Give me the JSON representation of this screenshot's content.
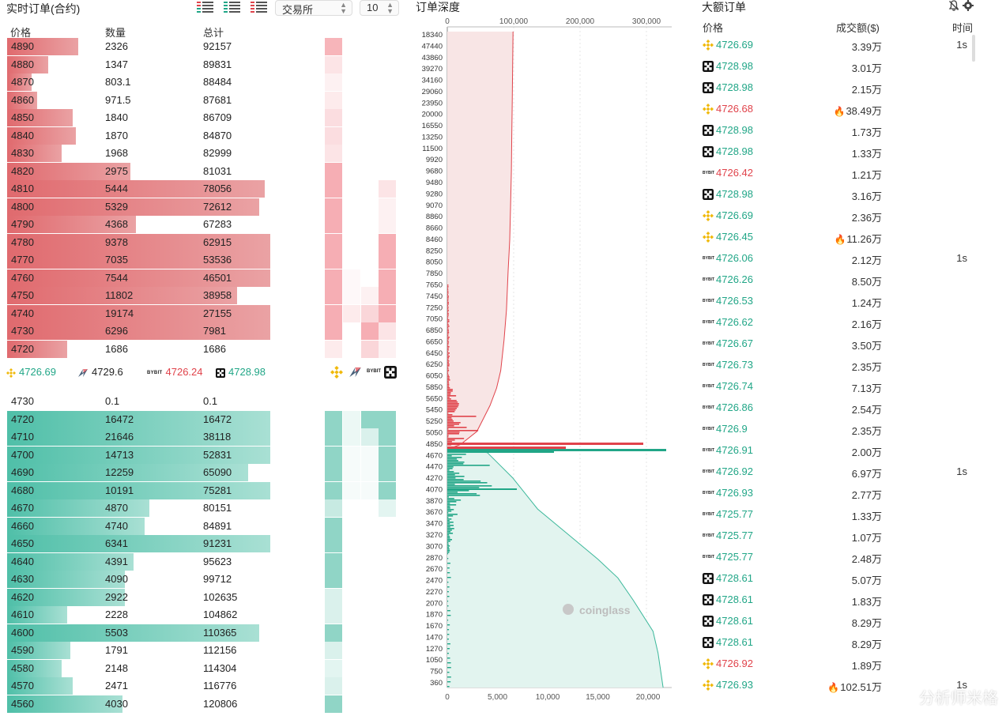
{
  "left": {
    "title": "实时订单(合约)",
    "exchange_select": "交易所",
    "depth_select": "10",
    "headers": {
      "price": "价格",
      "qty": "数量",
      "total": "总计"
    },
    "max_total": 120806,
    "asks": [
      {
        "price": "4890",
        "qty": "2326",
        "total": "92157",
        "depth": 0.26
      },
      {
        "price": "4880",
        "qty": "1347",
        "total": "89831",
        "depth": 0.15
      },
      {
        "price": "4870",
        "qty": "803.1",
        "total": "88484",
        "depth": 0.09
      },
      {
        "price": "4860",
        "qty": "971.5",
        "total": "87681",
        "depth": 0.11
      },
      {
        "price": "4850",
        "qty": "1840",
        "total": "86709",
        "depth": 0.24
      },
      {
        "price": "4840",
        "qty": "1870",
        "total": "84870",
        "depth": 0.25
      },
      {
        "price": "4830",
        "qty": "1968",
        "total": "82999",
        "depth": 0.2
      },
      {
        "price": "4820",
        "qty": "2975",
        "total": "81031",
        "depth": 0.45
      },
      {
        "price": "4810",
        "qty": "5444",
        "total": "78056",
        "depth": 0.94
      },
      {
        "price": "4800",
        "qty": "5329",
        "total": "72612",
        "depth": 0.92
      },
      {
        "price": "4790",
        "qty": "4368",
        "total": "67283",
        "depth": 0.47
      },
      {
        "price": "4780",
        "qty": "9378",
        "total": "62915",
        "depth": 0.96
      },
      {
        "price": "4770",
        "qty": "7035",
        "total": "53536",
        "depth": 0.96
      },
      {
        "price": "4760",
        "qty": "7544",
        "total": "46501",
        "depth": 0.96
      },
      {
        "price": "4750",
        "qty": "11802",
        "total": "38958",
        "depth": 0.84
      },
      {
        "price": "4740",
        "qty": "19174",
        "total": "27155",
        "depth": 0.96
      },
      {
        "price": "4730",
        "qty": "6296",
        "total": "7981",
        "depth": 0.96
      },
      {
        "price": "4720",
        "qty": "1686",
        "total": "1686",
        "depth": 0.22
      }
    ],
    "exchanges": [
      {
        "icon": "binance-icon",
        "price": "4726.69",
        "color": "#21a687"
      },
      {
        "icon": "huobi-icon",
        "price": "4729.6",
        "color": "#333333"
      },
      {
        "icon": "bybit-icon",
        "price": "4726.24",
        "color": "#e0434b"
      },
      {
        "icon": "okx-icon",
        "price": "4728.98",
        "color": "#21a687"
      }
    ],
    "bids": [
      {
        "price": "4730",
        "qty": "0.1",
        "total": "0.1",
        "depth": 0
      },
      {
        "price": "4720",
        "qty": "16472",
        "total": "16472",
        "depth": 0.96
      },
      {
        "price": "4710",
        "qty": "21646",
        "total": "38118",
        "depth": 0.96
      },
      {
        "price": "4700",
        "qty": "14713",
        "total": "52831",
        "depth": 0.96
      },
      {
        "price": "4690",
        "qty": "12259",
        "total": "65090",
        "depth": 0.88
      },
      {
        "price": "4680",
        "qty": "10191",
        "total": "75281",
        "depth": 0.96
      },
      {
        "price": "4670",
        "qty": "4870",
        "total": "80151",
        "depth": 0.52
      },
      {
        "price": "4660",
        "qty": "4740",
        "total": "84891",
        "depth": 0.5
      },
      {
        "price": "4650",
        "qty": "6341",
        "total": "91231",
        "depth": 0.96
      },
      {
        "price": "4640",
        "qty": "4391",
        "total": "95623",
        "depth": 0.46
      },
      {
        "price": "4630",
        "qty": "4090",
        "total": "99712",
        "depth": 0.43
      },
      {
        "price": "4620",
        "qty": "2922",
        "total": "102635",
        "depth": 0.43
      },
      {
        "price": "4610",
        "qty": "2228",
        "total": "104862",
        "depth": 0.22
      },
      {
        "price": "4600",
        "qty": "5503",
        "total": "110365",
        "depth": 0.92
      },
      {
        "price": "4590",
        "qty": "1791",
        "total": "112156",
        "depth": 0.23
      },
      {
        "price": "4580",
        "qty": "2148",
        "total": "114304",
        "depth": 0.2
      },
      {
        "price": "4570",
        "qty": "2471",
        "total": "116776",
        "depth": 0.24
      },
      {
        "price": "4560",
        "qty": "4030",
        "total": "120806",
        "depth": 0.42
      }
    ]
  },
  "chart_data": {
    "type": "area",
    "title": "订单深度",
    "top_axis_ticks": [
      "0",
      "100,000",
      "200,000",
      "300,000"
    ],
    "bottom_axis_ticks": [
      "0",
      "5,000",
      "10,000",
      "15,000",
      "20,000"
    ],
    "price_labels": [
      "18340",
      "47440",
      "43860",
      "39270",
      "34160",
      "29060",
      "23950",
      "20000",
      "16550",
      "13250",
      "11500",
      "9920",
      "9680",
      "9480",
      "9280",
      "9070",
      "8860",
      "8660",
      "8460",
      "8250",
      "8050",
      "7850",
      "7650",
      "7450",
      "7250",
      "7050",
      "6850",
      "6650",
      "6450",
      "6250",
      "6050",
      "5850",
      "5650",
      "5450",
      "5250",
      "5050",
      "4850",
      "4670",
      "4470",
      "4270",
      "4070",
      "3870",
      "3670",
      "3470",
      "3270",
      "3070",
      "2870",
      "2670",
      "2470",
      "2270",
      "2070",
      "1870",
      "1670",
      "1470",
      "1270",
      "1050",
      "750",
      "360"
    ],
    "watermark": "coinglass",
    "ask_cumulative_curve": [
      [
        100,
        80000
      ],
      [
        500,
        79500
      ],
      [
        900,
        79000
      ],
      [
        1300,
        78500
      ],
      [
        1700,
        78000
      ],
      [
        2100,
        77000
      ],
      [
        2500,
        76000
      ],
      [
        2850,
        74000
      ],
      [
        3300,
        72000
      ],
      [
        3650,
        69000
      ],
      [
        4000,
        65000
      ],
      [
        4200,
        60000
      ],
      [
        4400,
        52000
      ],
      [
        4550,
        44000
      ],
      [
        4700,
        36000
      ],
      [
        4850,
        16000
      ],
      [
        4900,
        2000
      ]
    ],
    "bid_cumulative_curve": [
      [
        4940,
        0
      ],
      [
        5000,
        4000
      ],
      [
        5400,
        6500
      ],
      [
        5900,
        9000
      ],
      [
        6300,
        12000
      ],
      [
        6700,
        15000
      ],
      [
        7000,
        17000
      ],
      [
        7350,
        18500
      ],
      [
        7850,
        20500
      ],
      [
        8200,
        21000
      ],
      [
        8750,
        21500
      ]
    ]
  },
  "right": {
    "title": "大额订单",
    "headers": {
      "price": "价格",
      "amount": "成交额($)",
      "time": "时间"
    },
    "rows": [
      {
        "ex": "binance",
        "price": "4726.69",
        "side": "buy",
        "amount": "3.39万",
        "time": "1s",
        "fire": false
      },
      {
        "ex": "okx",
        "price": "4728.98",
        "side": "buy",
        "amount": "3.01万",
        "time": "",
        "fire": false
      },
      {
        "ex": "okx",
        "price": "4728.98",
        "side": "buy",
        "amount": "2.15万",
        "time": "",
        "fire": false
      },
      {
        "ex": "binance",
        "price": "4726.68",
        "side": "sell",
        "amount": "38.49万",
        "time": "",
        "fire": true
      },
      {
        "ex": "okx",
        "price": "4728.98",
        "side": "buy",
        "amount": "1.73万",
        "time": "",
        "fire": false
      },
      {
        "ex": "okx",
        "price": "4728.98",
        "side": "buy",
        "amount": "1.33万",
        "time": "",
        "fire": false
      },
      {
        "ex": "bybit",
        "price": "4726.42",
        "side": "sell",
        "amount": "1.21万",
        "time": "",
        "fire": false
      },
      {
        "ex": "okx",
        "price": "4728.98",
        "side": "buy",
        "amount": "3.16万",
        "time": "",
        "fire": false
      },
      {
        "ex": "binance",
        "price": "4726.69",
        "side": "buy",
        "amount": "2.36万",
        "time": "",
        "fire": false
      },
      {
        "ex": "binance",
        "price": "4726.45",
        "side": "buy",
        "amount": "11.26万",
        "time": "",
        "fire": true
      },
      {
        "ex": "bybit",
        "price": "4726.06",
        "side": "buy",
        "amount": "2.12万",
        "time": "1s",
        "fire": false
      },
      {
        "ex": "bybit",
        "price": "4726.26",
        "side": "buy",
        "amount": "8.50万",
        "time": "",
        "fire": false
      },
      {
        "ex": "bybit",
        "price": "4726.53",
        "side": "buy",
        "amount": "1.24万",
        "time": "",
        "fire": false
      },
      {
        "ex": "bybit",
        "price": "4726.62",
        "side": "buy",
        "amount": "2.16万",
        "time": "",
        "fire": false
      },
      {
        "ex": "bybit",
        "price": "4726.67",
        "side": "buy",
        "amount": "3.50万",
        "time": "",
        "fire": false
      },
      {
        "ex": "bybit",
        "price": "4726.73",
        "side": "buy",
        "amount": "2.35万",
        "time": "",
        "fire": false
      },
      {
        "ex": "bybit",
        "price": "4726.74",
        "side": "buy",
        "amount": "7.13万",
        "time": "",
        "fire": false
      },
      {
        "ex": "bybit",
        "price": "4726.86",
        "side": "buy",
        "amount": "2.54万",
        "time": "",
        "fire": false
      },
      {
        "ex": "bybit",
        "price": "4726.9",
        "side": "buy",
        "amount": "2.35万",
        "time": "",
        "fire": false
      },
      {
        "ex": "bybit",
        "price": "4726.91",
        "side": "buy",
        "amount": "2.00万",
        "time": "",
        "fire": false
      },
      {
        "ex": "bybit",
        "price": "4726.92",
        "side": "buy",
        "amount": "6.97万",
        "time": "1s",
        "fire": false
      },
      {
        "ex": "bybit",
        "price": "4726.93",
        "side": "buy",
        "amount": "2.77万",
        "time": "",
        "fire": false
      },
      {
        "ex": "bybit",
        "price": "4725.77",
        "side": "buy",
        "amount": "1.33万",
        "time": "",
        "fire": false
      },
      {
        "ex": "bybit",
        "price": "4725.77",
        "side": "buy",
        "amount": "1.07万",
        "time": "",
        "fire": false
      },
      {
        "ex": "bybit",
        "price": "4725.77",
        "side": "buy",
        "amount": "2.48万",
        "time": "",
        "fire": false
      },
      {
        "ex": "okx",
        "price": "4728.61",
        "side": "buy",
        "amount": "5.07万",
        "time": "",
        "fire": false
      },
      {
        "ex": "okx",
        "price": "4728.61",
        "side": "buy",
        "amount": "1.83万",
        "time": "",
        "fire": false
      },
      {
        "ex": "okx",
        "price": "4728.61",
        "side": "buy",
        "amount": "8.29万",
        "time": "",
        "fire": false
      },
      {
        "ex": "okx",
        "price": "4728.61",
        "side": "buy",
        "amount": "8.29万",
        "time": "",
        "fire": false
      },
      {
        "ex": "binance",
        "price": "4726.92",
        "side": "sell",
        "amount": "1.89万",
        "time": "",
        "fire": false
      },
      {
        "ex": "binance",
        "price": "4726.93",
        "side": "buy",
        "amount": "102.51万",
        "time": "1s",
        "fire": true
      }
    ],
    "watermark": "分析师米格"
  }
}
